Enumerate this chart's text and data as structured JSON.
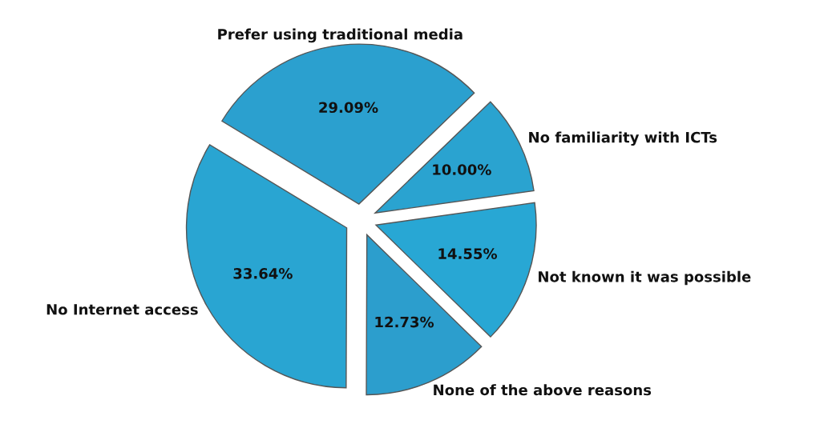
{
  "chart_data": {
    "type": "pie",
    "categories": [
      "No familiarity with ICTs",
      "Prefer using traditional media",
      "No Internet access",
      "None of the above reasons",
      "Not known it was possible"
    ],
    "values": [
      10.0,
      29.09,
      33.64,
      12.73,
      14.55
    ],
    "value_labels": [
      "10.00%",
      "29.09%",
      "33.64%",
      "12.73%",
      "14.55%"
    ],
    "colors": [
      "#2aa3d0",
      "#2ba0cf",
      "#29a5d2",
      "#2c9ecd",
      "#28a7d4"
    ],
    "legend": false
  }
}
